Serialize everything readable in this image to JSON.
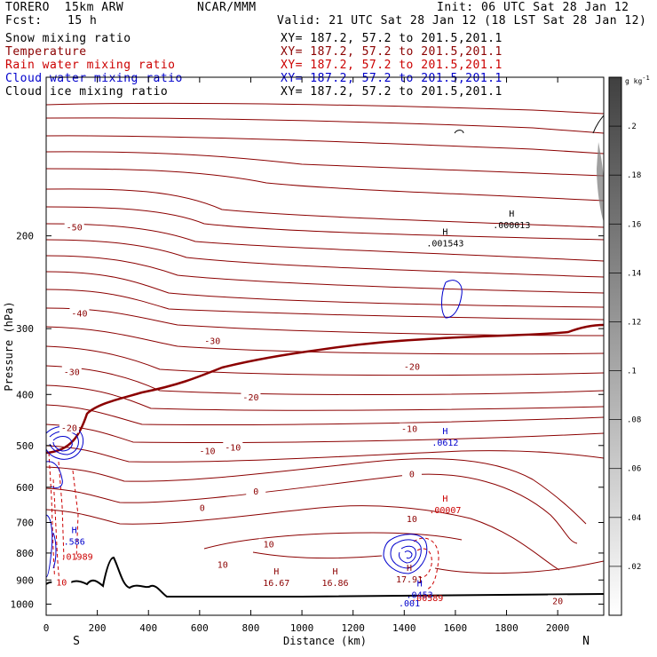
{
  "header": {
    "model": "TORERO  15km ARW",
    "center": "NCAR/MMM",
    "init": "Init: 06 UTC Sat 28 Jan 12",
    "fcst_label": "Fcst:",
    "fcst_value": "15 h",
    "valid": "Valid: 21 UTC Sat 28 Jan 12 (18 LST Sat 28 Jan 12)"
  },
  "fields": [
    {
      "name": "Snow mixing ratio",
      "xy": "XY= 187.2, 57.2 to 201.5,201.1",
      "color": "#000000"
    },
    {
      "name": "Temperature",
      "xy": "XY= 187.2, 57.2 to 201.5,201.1",
      "color": "#8b0000"
    },
    {
      "name": "Rain water mixing ratio",
      "xy": "XY= 187.2, 57.2 to 201.5,201.1",
      "color": "#cc0000"
    },
    {
      "name": "Cloud water mixing ratio",
      "xy": "XY= 187.2, 57.2 to 201.5,201.1",
      "color": "#0000cc"
    },
    {
      "name": "Cloud ice mixing ratio",
      "xy": "XY= 187.2, 57.2 to 201.5,201.1",
      "color": "#000000"
    }
  ],
  "chart_data": {
    "type": "contour cross-section",
    "xlabel": "Distance (km)",
    "ylabel": "Pressure (hPa)",
    "xlim": [
      0,
      2180
    ],
    "ylim": [
      1050,
      100
    ],
    "x_ticks": [
      0,
      200,
      400,
      600,
      800,
      1000,
      1200,
      1400,
      1600,
      1800,
      2000
    ],
    "y_ticks": [
      200,
      300,
      400,
      500,
      600,
      700,
      800,
      900,
      1000
    ],
    "y_log_scale": true,
    "left_end": "S",
    "right_end": "N",
    "temperature_contour_labels": [
      {
        "text": "-50",
        "x": 110,
        "p": 193,
        "color": "#8b0000"
      },
      {
        "text": "-40",
        "x": 130,
        "p": 281,
        "color": "#8b0000"
      },
      {
        "text": "-30",
        "x": 650,
        "p": 317,
        "color": "#8b0000"
      },
      {
        "text": "-30",
        "x": 100,
        "p": 363,
        "color": "#8b0000"
      },
      {
        "text": "-20",
        "x": 1430,
        "p": 355,
        "color": "#8b0000"
      },
      {
        "text": "-20",
        "x": 800,
        "p": 406,
        "color": "#8b0000"
      },
      {
        "text": "-20",
        "x": 90,
        "p": 464,
        "color": "#8b0000"
      },
      {
        "text": "-10",
        "x": 1420,
        "p": 466,
        "color": "#8b0000"
      },
      {
        "text": "-10",
        "x": 730,
        "p": 505,
        "color": "#8b0000"
      },
      {
        "text": "-10",
        "x": 630,
        "p": 513,
        "color": "#8b0000"
      },
      {
        "text": "0",
        "x": 1430,
        "p": 568,
        "color": "#8b0000"
      },
      {
        "text": "0",
        "x": 820,
        "p": 612,
        "color": "#8b0000"
      },
      {
        "text": "0",
        "x": 610,
        "p": 658,
        "color": "#8b0000"
      },
      {
        "text": "10",
        "x": 1430,
        "p": 690,
        "color": "#8b0000"
      },
      {
        "text": "10",
        "x": 870,
        "p": 772,
        "color": "#8b0000"
      },
      {
        "text": "10",
        "x": 690,
        "p": 844,
        "color": "#8b0000"
      },
      {
        "text": "20",
        "x": 2000,
        "p": 988,
        "color": "#8b0000"
      },
      {
        "text": "10",
        "x": 60,
        "p": 912,
        "color": "#cc0000"
      }
    ],
    "extrema_labels": [
      {
        "mark": "H",
        "value": ".001543",
        "x": 1560,
        "p": 208,
        "color": "#000000"
      },
      {
        "mark": "H",
        "value": ".000013",
        "x": 1820,
        "p": 192,
        "color": "#000000"
      },
      {
        "mark": "H",
        "value": ".0612",
        "x": 1560,
        "p": 497,
        "color": "#0000cc"
      },
      {
        "mark": "H",
        "value": ".00007",
        "x": 1560,
        "p": 667,
        "color": "#cc0000"
      },
      {
        "mark": "H",
        "value": "16.67",
        "x": 900,
        "p": 917,
        "color": "#8b0000"
      },
      {
        "mark": "H",
        "value": "16.86",
        "x": 1130,
        "p": 917,
        "color": "#8b0000"
      },
      {
        "mark": "H",
        "value": "17.91",
        "x": 1420,
        "p": 903,
        "color": "#8b0000"
      },
      {
        "mark": "H",
        "value": ".586",
        "x": 110,
        "p": 765,
        "color": "#0000cc"
      },
      {
        "mark": "",
        "value": ".01989",
        "x": 120,
        "p": 818,
        "color": "#cc0000"
      },
      {
        "mark": "H",
        "value": ".0453",
        "x": 1460,
        "p": 966,
        "color": "#0000cc"
      },
      {
        "mark": "",
        "value": ".00589",
        "x": 1490,
        "p": 980,
        "color": "#cc0000"
      },
      {
        "mark": "",
        "value": ".001",
        "x": 1420,
        "p": 1003,
        "color": "#0000cc"
      }
    ],
    "colorbar": {
      "unit": "g kg",
      "unit_exp": "-1",
      "min": 0,
      "max": 0.22,
      "ticks": [
        0.02,
        0.04,
        0.06,
        0.08,
        0.1,
        0.12,
        0.14,
        0.16,
        0.18,
        0.2
      ],
      "tick_labels": [
        ".02",
        ".04",
        ".06",
        ".08",
        ".1",
        ".12",
        ".14",
        ".16",
        ".18",
        ".2"
      ],
      "top_color": "#404040",
      "bottom_color": "#ffffff"
    },
    "series": [
      {
        "name": "Temperature",
        "color": "#8b0000"
      },
      {
        "name": "Rain water mixing ratio",
        "color": "#cc0000"
      },
      {
        "name": "Cloud water mixing ratio",
        "color": "#0000cc"
      },
      {
        "name": "Snow mixing ratio",
        "color": "#000000"
      }
    ]
  }
}
